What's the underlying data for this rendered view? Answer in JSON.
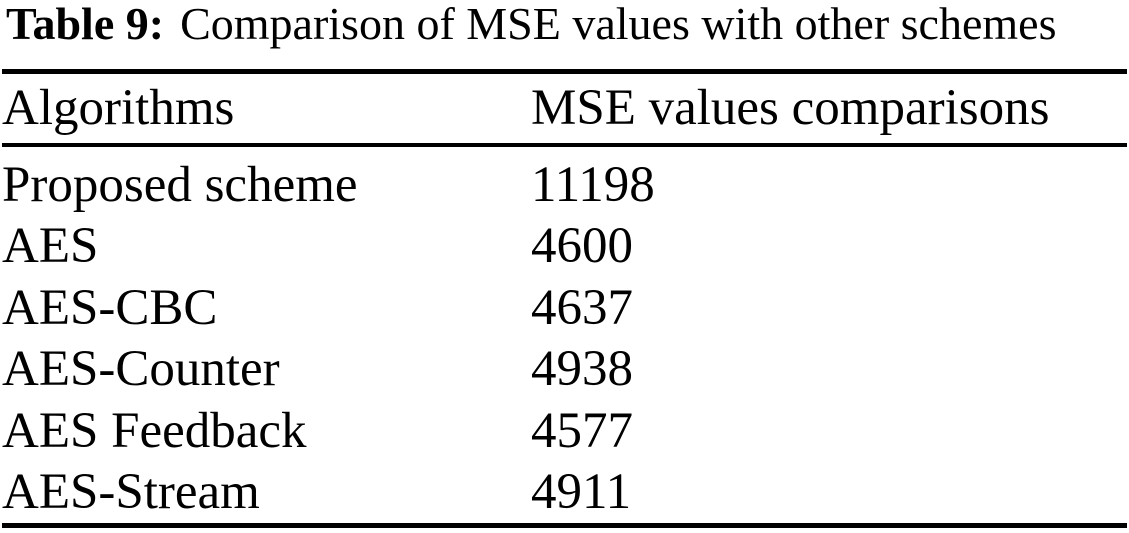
{
  "caption": {
    "label": "Table 9:",
    "text": "Comparison of MSE values with other schemes"
  },
  "table": {
    "columns": [
      "Algorithms",
      "MSE values comparisons"
    ],
    "rows": [
      {
        "algorithm": "Proposed scheme",
        "mse": "11198"
      },
      {
        "algorithm": "AES",
        "mse": "4600"
      },
      {
        "algorithm": "AES-CBC",
        "mse": "4637"
      },
      {
        "algorithm": "AES-Counter",
        "mse": "4938"
      },
      {
        "algorithm": "AES Feedback",
        "mse": "4577"
      },
      {
        "algorithm": "AES-Stream",
        "mse": "4911"
      }
    ]
  },
  "chart_data": {
    "type": "table",
    "title": "Table 9: Comparison of MSE values with other schemes",
    "categories": [
      "Proposed scheme",
      "AES",
      "AES-CBC",
      "AES-Counter",
      "AES Feedback",
      "AES-Stream"
    ],
    "values": [
      11198,
      4600,
      4637,
      4938,
      4577,
      4911
    ],
    "xlabel": "Algorithms",
    "ylabel": "MSE values comparisons"
  },
  "colors": {
    "text": "#000000",
    "background": "#ffffff",
    "rule": "#000000"
  }
}
